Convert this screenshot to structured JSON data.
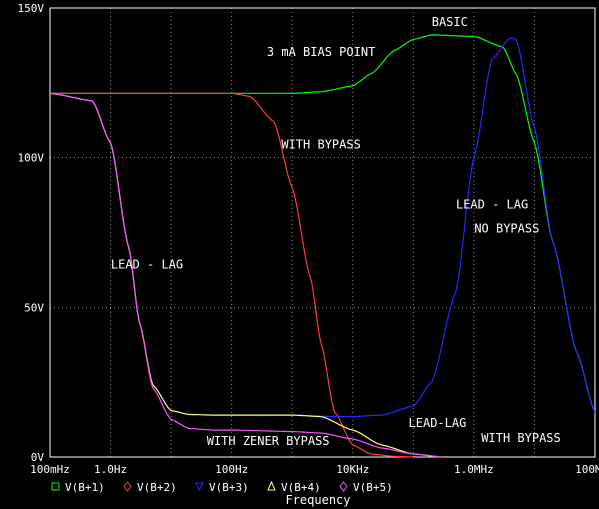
{
  "chart_data": {
    "type": "line",
    "xscale": "log",
    "xlim": [
      0.1,
      100000000
    ],
    "ylim": [
      0,
      150
    ],
    "grid": true,
    "xlabel": "Frequency",
    "ylabel": "",
    "x_tick_labels": [
      "100mHz",
      "1.0Hz",
      "100Hz",
      "10KHz",
      "1.0MHz",
      "100MHz"
    ],
    "x_tick_values": [
      0.1,
      1,
      100,
      10000,
      1000000,
      100000000
    ],
    "y_tick_labels": [
      "0V",
      "50V",
      "100V",
      "150V"
    ],
    "y_tick_values": [
      0,
      50,
      100,
      150
    ],
    "legend_position": "bottom",
    "series": [
      {
        "name": "V(B+1)",
        "color": "#00ff00",
        "marker": "square",
        "x": [
          0.1,
          1,
          10,
          100,
          1000,
          3000,
          10000,
          20000,
          50000,
          100000,
          200000,
          1000000,
          3000000,
          5000000,
          10000000,
          20000000,
          50000000,
          100000000
        ],
        "y": [
          121.5,
          121.5,
          121.5,
          121.5,
          121.5,
          122,
          124,
          128,
          136,
          139.5,
          141,
          140.5,
          137,
          128,
          105,
          72,
          35,
          15
        ]
      },
      {
        "name": "V(B+2)",
        "color": "#ff3c3c",
        "marker": "diamond",
        "x": [
          0.1,
          1,
          10,
          100,
          200,
          500,
          1000,
          2000,
          3000,
          5000,
          10000,
          20000,
          50000,
          100000
        ],
        "y": [
          121.5,
          121.5,
          121.5,
          121.5,
          120.5,
          112,
          90,
          60,
          38,
          15,
          4,
          1,
          0.2,
          0
        ]
      },
      {
        "name": "V(B+3)",
        "color": "#2828ff",
        "marker": "triangle-down",
        "x": [
          1000,
          5000,
          10000,
          30000,
          100000,
          200000,
          500000,
          1000000,
          2000000,
          4000000,
          5000000,
          10000000,
          20000000,
          50000000,
          100000000
        ],
        "y": [
          14,
          13.5,
          13.5,
          14,
          17,
          25,
          55,
          100,
          133,
          140,
          139.5,
          110,
          72,
          35,
          15
        ]
      },
      {
        "name": "V(B+4)",
        "color": "#ffff80",
        "marker": "triangle-up",
        "x": [
          0.1,
          0.5,
          1,
          2,
          3,
          5,
          10,
          20,
          50,
          100,
          1000,
          3000,
          10000,
          30000,
          100000,
          300000
        ],
        "y": [
          121.5,
          119,
          105,
          70,
          45,
          24,
          15.5,
          14.2,
          14,
          14,
          14,
          13.5,
          9,
          4,
          1,
          0
        ]
      },
      {
        "name": "V(B+5)",
        "color": "#ff50ff",
        "marker": "diamond",
        "x": [
          0.1,
          0.5,
          1,
          2,
          3,
          5,
          10,
          20,
          50,
          100,
          1000,
          3000,
          10000,
          30000,
          100000,
          300000
        ],
        "y": [
          121.5,
          119,
          105,
          70,
          45,
          23,
          12.5,
          9.5,
          9,
          9,
          8.5,
          8,
          6,
          3,
          1,
          0
        ]
      }
    ],
    "annotations": [
      {
        "text": "BASIC",
        "x": 400000,
        "y": 144
      },
      {
        "text": "3 mA BIAS POINT",
        "x": 3000,
        "y": 134
      },
      {
        "text": "WITH BYPASS",
        "x": 3000,
        "y": 103
      },
      {
        "text": "LEAD - LAG",
        "x": 2000000,
        "y": 83
      },
      {
        "text": "NO BYPASS",
        "x": 3500000,
        "y": 75
      },
      {
        "text": "LEAD - LAG",
        "x": 4,
        "y": 63
      },
      {
        "text": "LEAD-LAG",
        "x": 250000,
        "y": 10
      },
      {
        "text": "WITH BYPASS",
        "x": 6000000,
        "y": 5
      },
      {
        "text": "WITH ZENER BYPASS",
        "x": 400,
        "y": 4
      }
    ]
  }
}
